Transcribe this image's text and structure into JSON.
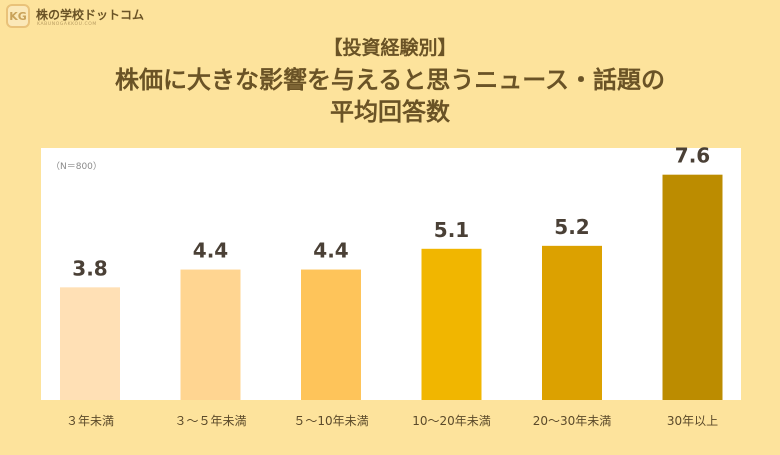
{
  "logo": {
    "mark": "KG",
    "name": "株の学校ドットコム",
    "sub": "KABUNOGAKKOU.COM"
  },
  "title": {
    "category": "【投資経験別】",
    "line1": "株価に大きな影響を与えると思うニュース・話題の",
    "line2": "平均回答数"
  },
  "note": "（N＝800）",
  "colors": {
    "background": "#FDE39C",
    "panel": "#FFFFFF",
    "bars": [
      "#FFE0B5",
      "#FFD591",
      "#FEC45A",
      "#F1B600",
      "#DCA100",
      "#BC8C00"
    ]
  },
  "chart_data": {
    "type": "bar",
    "categories": [
      "３年未満",
      "３～５年未満",
      "５～10年未満",
      "10～20年未満",
      "20～30年未満",
      "30年以上"
    ],
    "values": [
      3.8,
      4.4,
      4.4,
      5.1,
      5.2,
      7.6
    ],
    "value_labels": [
      "3.8",
      "4.4",
      "4.4",
      "5.1",
      "5.2",
      "7.6"
    ],
    "ylim": [
      0,
      8.5
    ],
    "grid": false,
    "legend": "none"
  }
}
